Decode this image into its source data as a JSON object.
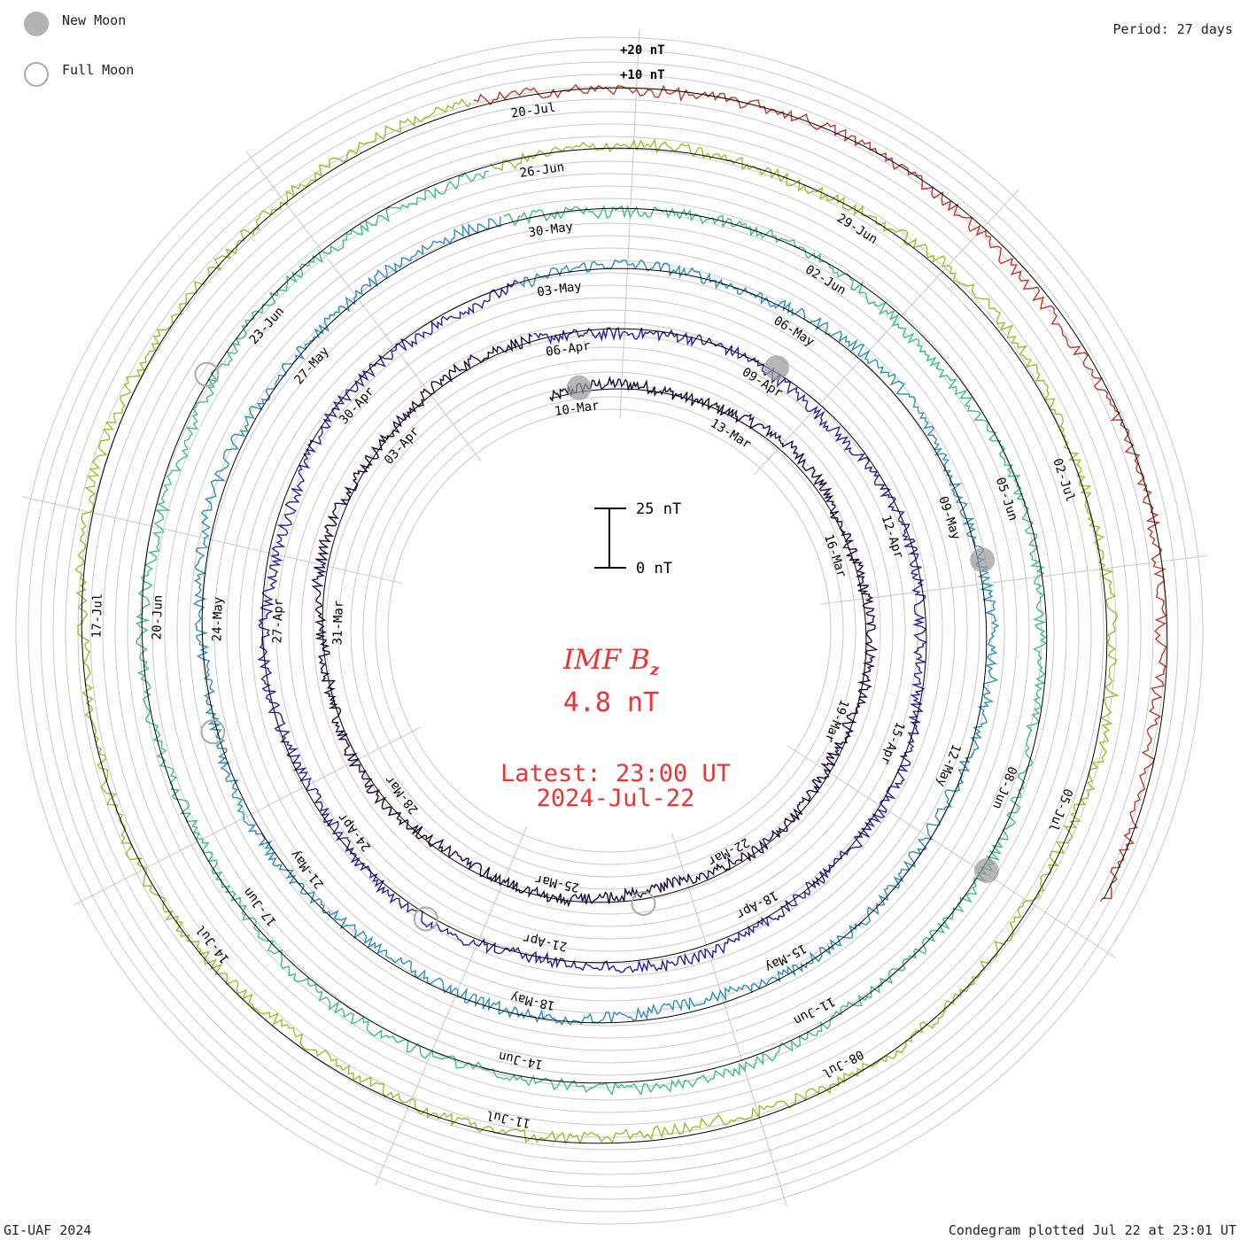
{
  "legend": {
    "new_moon": "New Moon",
    "full_moon": "Full Moon"
  },
  "period": "Period: 27 days",
  "footer": {
    "left": "GI-UAF 2024",
    "right": "Condegram plotted Jul 22 at 23:01 UT"
  },
  "scale_bar": {
    "top_label": "25 nT",
    "bottom_label": "0 nT"
  },
  "center": {
    "quantity": "IMF B",
    "subscript": "z",
    "value": "4.8 nT",
    "latest_line1": "Latest: 23:00 UT",
    "latest_line2": "2024-Jul-22"
  },
  "chart_data": {
    "type": "line",
    "title": "IMF Bz condegram",
    "plot": "polar spiral (condegram), one ring per 27-day rotation",
    "period_days": 27,
    "outer_ring_labels": [
      "+20 nT",
      "+10 nT"
    ],
    "units": "nT",
    "latest_value": 4.8,
    "rotations": [
      {
        "index": 1,
        "color": "#1a0a3a",
        "date_labels": [
          "10-Mar",
          "13-Mar",
          "16-Mar",
          "19-Mar",
          "22-Mar",
          "25-Mar",
          "28-Mar",
          "31-Mar",
          "03-Apr"
        ]
      },
      {
        "index": 2,
        "color": "#2a1f9a",
        "date_labels": [
          "06-Apr",
          "09-Apr",
          "12-Apr",
          "15-Apr",
          "18-Apr",
          "21-Apr",
          "24-Apr",
          "27-Apr",
          "30-Apr"
        ]
      },
      {
        "index": 3,
        "color": "#2e8fb8",
        "date_labels": [
          "03-May",
          "06-May",
          "09-May",
          "12-May",
          "15-May",
          "18-May",
          "21-May",
          "24-May",
          "27-May"
        ]
      },
      {
        "index": 4,
        "color": "#3fbf8a",
        "date_labels": [
          "30-May",
          "02-Jun",
          "05-Jun",
          "08-Jun",
          "11-Jun",
          "14-Jun",
          "17-Jun",
          "20-Jun",
          "23-Jun"
        ]
      },
      {
        "index": 5,
        "color": "#9fbf2a",
        "date_labels": [
          "26-Jun",
          "29-Jun",
          "02-Jul",
          "05-Jul",
          "08-Jul",
          "11-Jul",
          "14-Jul",
          "17-Jul"
        ]
      },
      {
        "index": 6,
        "color": "#c0392b",
        "date_labels": [
          "20-Jul"
        ]
      }
    ],
    "new_moon_markers": 4,
    "full_moon_markers": 4
  },
  "colors": {
    "label_red": "#ee3333",
    "grid": "#c8c8c8",
    "baseline": "#000000"
  }
}
